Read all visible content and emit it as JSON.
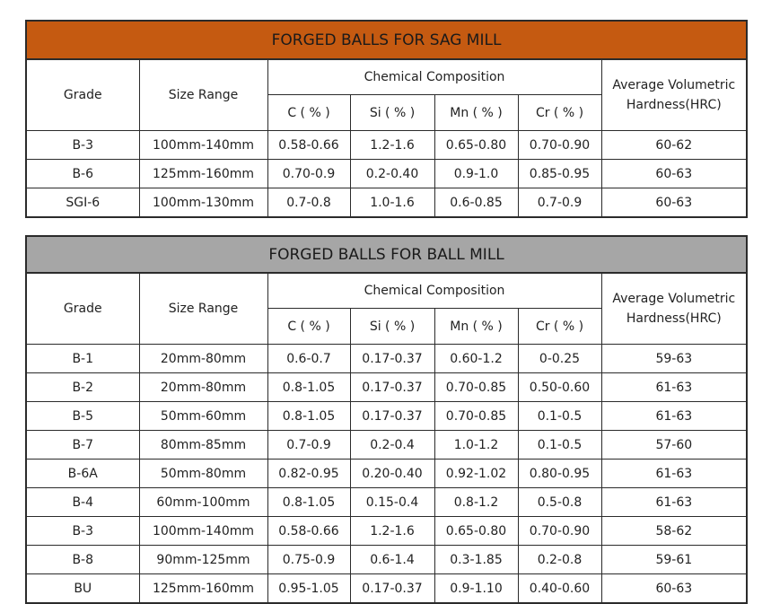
{
  "headers": {
    "grade": "Grade",
    "size_range": "Size Range",
    "chemical_composition": "Chemical Composition",
    "c": "C ( % )",
    "si": "Si ( % )",
    "mn": "Mn ( % )",
    "cr": "Cr ( % )",
    "hardness_line1": "Average Volumetric",
    "hardness_line2": "Hardness(HRC)"
  },
  "colors": {
    "sag_title_bg": "#c55a11",
    "ball_title_bg": "#a6a6a6"
  },
  "sag_table": {
    "title": "FORGED BALLS FOR SAG MILL",
    "rows": [
      {
        "grade": "B-3",
        "size": "100mm-140mm",
        "c": "0.58-0.66",
        "si": "1.2-1.6",
        "mn": "0.65-0.80",
        "cr": "0.70-0.90",
        "hardness": "60-62"
      },
      {
        "grade": "B-6",
        "size": "125mm-160mm",
        "c": "0.70-0.9",
        "si": "0.2-0.40",
        "mn": "0.9-1.0",
        "cr": "0.85-0.95",
        "hardness": "60-63"
      },
      {
        "grade": "SGI-6",
        "size": "100mm-130mm",
        "c": "0.7-0.8",
        "si": "1.0-1.6",
        "mn": "0.6-0.85",
        "cr": "0.7-0.9",
        "hardness": "60-63"
      }
    ]
  },
  "ball_table": {
    "title": "FORGED BALLS FOR BALL MILL",
    "rows": [
      {
        "grade": "B-1",
        "size": "20mm-80mm",
        "c": "0.6-0.7",
        "si": "0.17-0.37",
        "mn": "0.60-1.2",
        "cr": "0-0.25",
        "hardness": "59-63"
      },
      {
        "grade": "B-2",
        "size": "20mm-80mm",
        "c": "0.8-1.05",
        "si": "0.17-0.37",
        "mn": "0.70-0.85",
        "cr": "0.50-0.60",
        "hardness": "61-63"
      },
      {
        "grade": "B-5",
        "size": "50mm-60mm",
        "c": "0.8-1.05",
        "si": "0.17-0.37",
        "mn": "0.70-0.85",
        "cr": "0.1-0.5",
        "hardness": "61-63"
      },
      {
        "grade": "B-7",
        "size": "80mm-85mm",
        "c": "0.7-0.9",
        "si": "0.2-0.4",
        "mn": "1.0-1.2",
        "cr": "0.1-0.5",
        "hardness": "57-60"
      },
      {
        "grade": "B-6A",
        "size": "50mm-80mm",
        "c": "0.82-0.95",
        "si": "0.20-0.40",
        "mn": "0.92-1.02",
        "cr": "0.80-0.95",
        "hardness": "61-63"
      },
      {
        "grade": "B-4",
        "size": "60mm-100mm",
        "c": "0.8-1.05",
        "si": "0.15-0.4",
        "mn": "0.8-1.2",
        "cr": "0.5-0.8",
        "hardness": "61-63"
      },
      {
        "grade": "B-3",
        "size": "100mm-140mm",
        "c": "0.58-0.66",
        "si": "1.2-1.6",
        "mn": "0.65-0.80",
        "cr": "0.70-0.90",
        "hardness": "58-62"
      },
      {
        "grade": "B-8",
        "size": "90mm-125mm",
        "c": "0.75-0.9",
        "si": "0.6-1.4",
        "mn": "0.3-1.85",
        "cr": "0.2-0.8",
        "hardness": "59-61"
      },
      {
        "grade": "BU",
        "size": "125mm-160mm",
        "c": "0.95-1.05",
        "si": "0.17-0.37",
        "mn": "0.9-1.10",
        "cr": "0.40-0.60",
        "hardness": "60-63"
      }
    ]
  }
}
